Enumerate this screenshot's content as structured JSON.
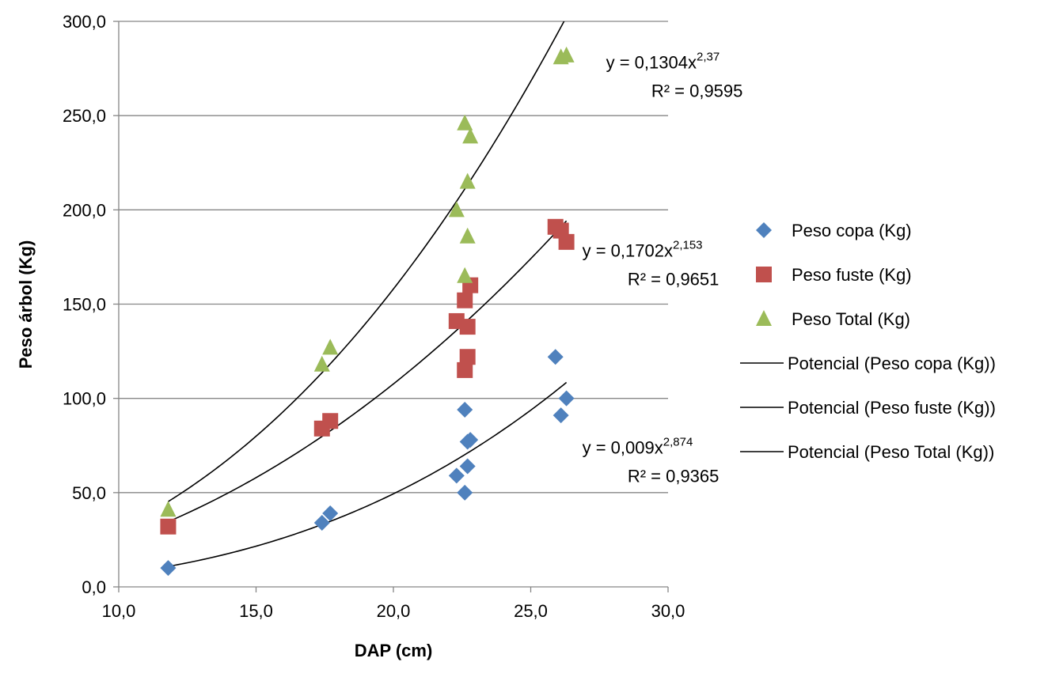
{
  "chart_data": {
    "type": "scatter",
    "xlabel": "DAP (cm)",
    "ylabel": "Peso árbol (Kg)",
    "xlim": [
      10,
      30
    ],
    "ylim": [
      0,
      300
    ],
    "x_ticks": [
      "10,0",
      "15,0",
      "20,0",
      "25,0",
      "30,0"
    ],
    "y_ticks": [
      "0,0",
      "50,0",
      "100,0",
      "150,0",
      "200,0",
      "250,0",
      "300,0"
    ],
    "grid": "horizontal",
    "legend_position": "right",
    "series": [
      {
        "name": "Peso copa (Kg)",
        "marker": "diamond",
        "color": "#4f81bd",
        "points": [
          [
            11.8,
            10
          ],
          [
            17.4,
            34
          ],
          [
            17.7,
            39
          ],
          [
            22.3,
            59
          ],
          [
            22.6,
            94
          ],
          [
            22.6,
            50
          ],
          [
            22.7,
            64
          ],
          [
            22.7,
            77
          ],
          [
            22.8,
            78
          ],
          [
            25.9,
            122
          ],
          [
            26.1,
            91
          ],
          [
            26.3,
            100
          ]
        ]
      },
      {
        "name": "Peso fuste (Kg)",
        "marker": "square",
        "color": "#c0504d",
        "points": [
          [
            11.8,
            32
          ],
          [
            17.4,
            84
          ],
          [
            17.7,
            88
          ],
          [
            22.3,
            141
          ],
          [
            22.6,
            115
          ],
          [
            22.6,
            152
          ],
          [
            22.7,
            122
          ],
          [
            22.7,
            138
          ],
          [
            22.8,
            160
          ],
          [
            25.9,
            191
          ],
          [
            26.1,
            189
          ],
          [
            26.3,
            183
          ]
        ]
      },
      {
        "name": "Peso Total (Kg)",
        "marker": "triangle",
        "color": "#9bbb59",
        "points": [
          [
            11.8,
            41
          ],
          [
            17.4,
            118
          ],
          [
            17.7,
            127
          ],
          [
            22.3,
            200
          ],
          [
            22.6,
            165
          ],
          [
            22.6,
            246
          ],
          [
            22.7,
            186
          ],
          [
            22.7,
            215
          ],
          [
            22.8,
            239
          ],
          [
            26.1,
            281
          ],
          [
            26.3,
            282
          ]
        ]
      }
    ],
    "trendlines": [
      {
        "name": "Potencial (Peso copa (Kg))",
        "type": "power",
        "a": 0.009,
        "b": 2.874,
        "x_range": [
          11.8,
          26.3
        ],
        "equation_text": "y = 0,009x",
        "exponent_text": "2,874",
        "r2_text": "R² = 0,9365"
      },
      {
        "name": "Potencial (Peso fuste (Kg))",
        "type": "power",
        "a": 0.1702,
        "b": 2.153,
        "x_range": [
          11.8,
          26.3
        ],
        "equation_text": "y = 0,1702x",
        "exponent_text": "2,153",
        "r2_text": "R² = 0,9651"
      },
      {
        "name": "Potencial (Peso Total (Kg))",
        "type": "power",
        "a": 0.1304,
        "b": 2.37,
        "x_range": [
          11.8,
          26.3
        ],
        "equation_text": "y = 0,1304x",
        "exponent_text": "2,37",
        "r2_text": "R² = 0,9595"
      }
    ]
  }
}
